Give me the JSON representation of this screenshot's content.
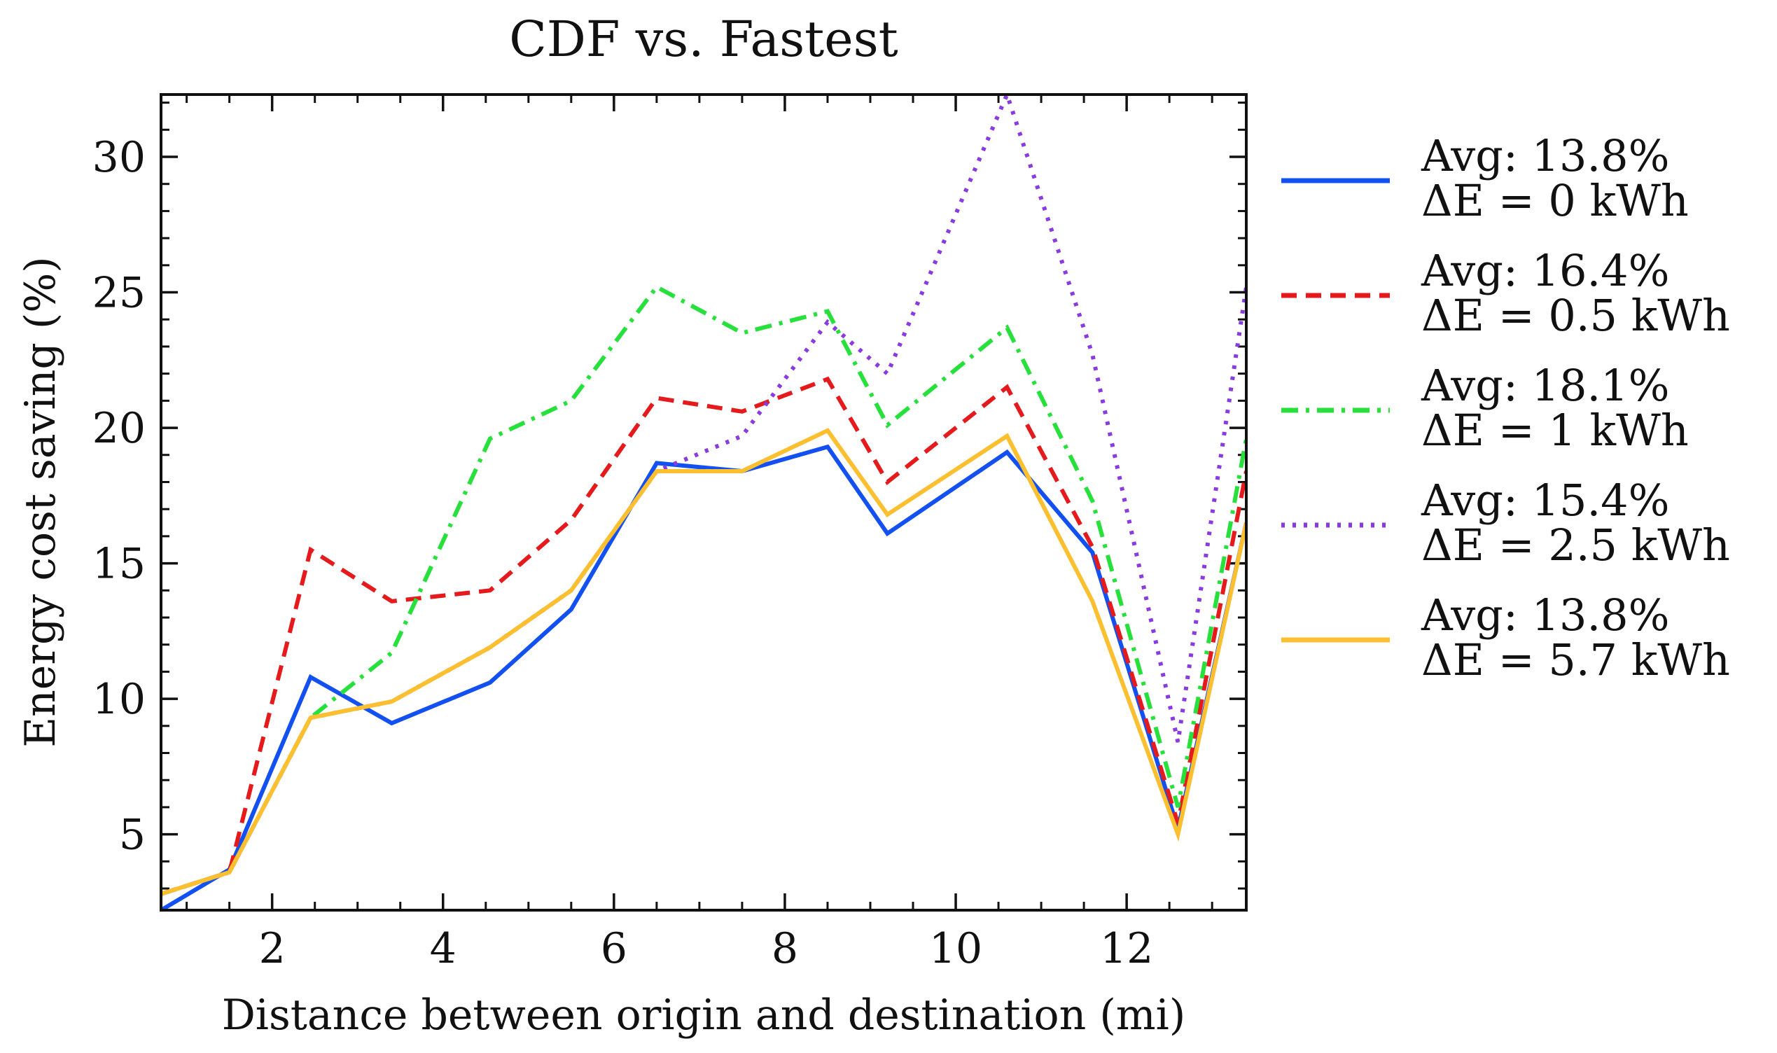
{
  "chart_data": {
    "type": "line",
    "title": "CDF vs. Fastest",
    "xlabel": "Distance between origin and destination (mi)",
    "ylabel": "Energy cost saving (%)",
    "xlim": [
      0.7,
      13.4
    ],
    "ylim": [
      2.2,
      32.3
    ],
    "xticks": [
      2,
      4,
      6,
      8,
      10,
      12
    ],
    "yticks": [
      5,
      10,
      15,
      20,
      25,
      30
    ],
    "xtick_labels": [
      "2",
      "4",
      "6",
      "8",
      "10",
      "12"
    ],
    "ytick_labels": [
      "5",
      "10",
      "15",
      "20",
      "25",
      "30"
    ],
    "x_minor_step": 0.5,
    "y_minor_step": 1,
    "legend_position": "outside-right",
    "x": [
      0.7,
      1.5,
      2.45,
      3.4,
      4.55,
      5.5,
      6.5,
      7.5,
      8.5,
      9.2,
      10.6,
      11.6,
      12.6,
      13.4
    ],
    "series": [
      {
        "name": "ΔE = 0 kWh",
        "legend_avg": "Avg: 13.8%",
        "legend_de": "ΔE = 0 kWh",
        "color": "#1250f0",
        "dash": "solid",
        "values": [
          2.2,
          3.7,
          10.8,
          9.1,
          10.6,
          13.3,
          18.7,
          18.4,
          19.3,
          16.1,
          19.1,
          15.4,
          5.2,
          16.5
        ]
      },
      {
        "name": "ΔE = 0.5 kWh",
        "legend_avg": "Avg: 16.4%",
        "legend_de": "ΔE = 0.5 kWh",
        "color": "#e41a1c",
        "dash": "dashed",
        "values": [
          2.8,
          3.6,
          15.5,
          13.6,
          14.0,
          16.6,
          21.1,
          20.6,
          21.8,
          18.0,
          21.5,
          15.6,
          5.4,
          18.4
        ]
      },
      {
        "name": "ΔE = 1 kWh",
        "legend_avg": "Avg: 18.1%",
        "legend_de": "ΔE = 1 kWh",
        "color": "#28e03c",
        "dash": "dashdot",
        "values": [
          2.8,
          3.6,
          9.3,
          11.7,
          19.6,
          21.0,
          25.2,
          23.5,
          24.3,
          20.1,
          23.7,
          17.3,
          6.0,
          19.6
        ]
      },
      {
        "name": "ΔE = 2.5 kWh",
        "legend_avg": "Avg: 15.4%",
        "legend_de": "ΔE = 2.5 kWh",
        "color": "#8a3be0",
        "dash": "dotted",
        "values": [
          2.8,
          3.6,
          9.3,
          9.9,
          11.9,
          14.0,
          18.4,
          19.7,
          23.9,
          22.0,
          32.3,
          22.7,
          8.4,
          25.2
        ]
      },
      {
        "name": "ΔE = 5.7 kWh",
        "legend_avg": "Avg: 13.8%",
        "legend_de": "ΔE = 5.7 kWh",
        "color": "#fbbf2f",
        "dash": "solid",
        "values": [
          2.8,
          3.6,
          9.3,
          9.9,
          11.9,
          14.0,
          18.4,
          18.4,
          19.9,
          16.8,
          19.7,
          13.6,
          5.0,
          16.5
        ]
      }
    ]
  }
}
